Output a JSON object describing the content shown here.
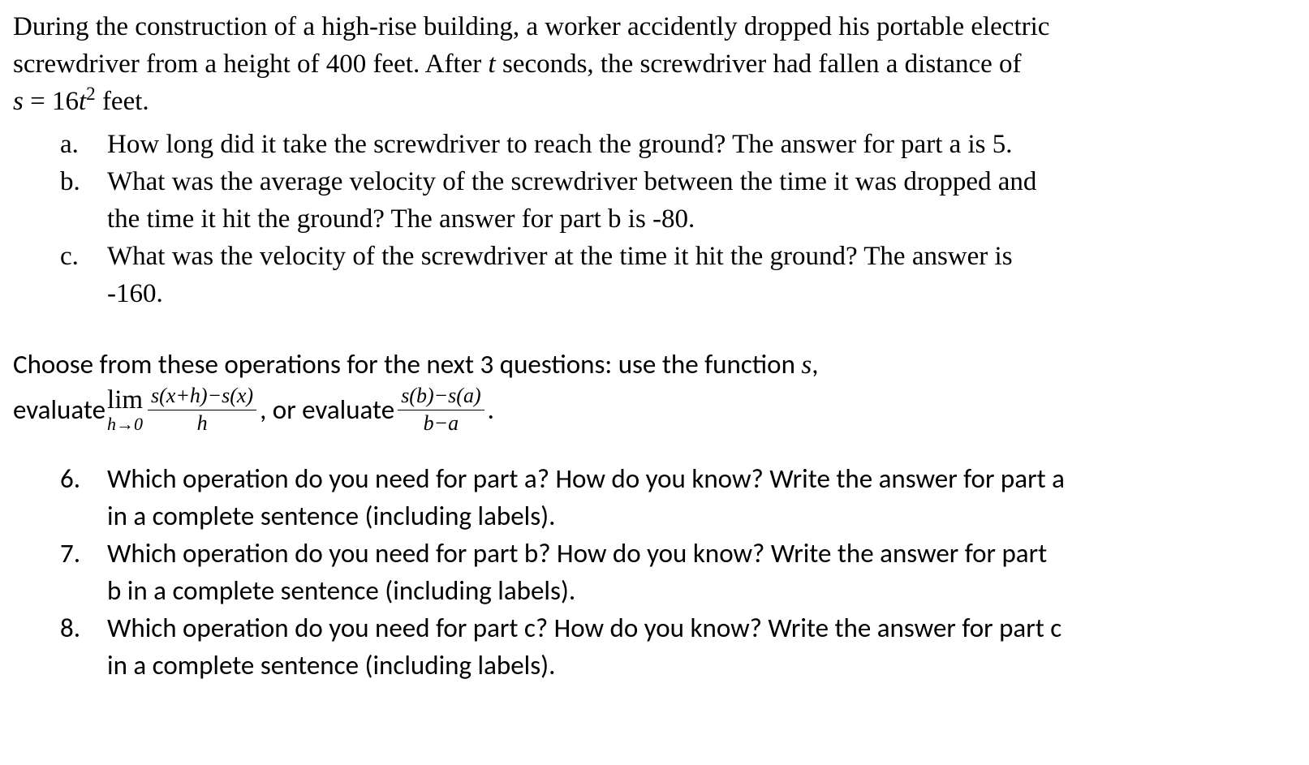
{
  "intro": {
    "line1_a": "During the construction of a high-rise building, a worker accidently dropped his portable electric",
    "line2_a": "screwdriver from a height of 400 feet. After ",
    "t": "t",
    "line2_b": " seconds, the screwdriver had fallen a distance of",
    "line3_a": "s",
    "line3_eq": " = 16",
    "line3_t": "t",
    "line3_sup": "2",
    "line3_b": " feet."
  },
  "parts": {
    "a": {
      "marker": "a.",
      "text": "How long did it take the screwdriver to reach the ground? The answer for part a is 5."
    },
    "b": {
      "marker": "b.",
      "text1": "What was the average velocity of the screwdriver between the time it was dropped and",
      "text2": "the time it hit the ground? The answer for part b is -80."
    },
    "c": {
      "marker": "c.",
      "text1": "What was the velocity of the screwdriver at the time it hit the ground? The answer is",
      "text2": "-160."
    }
  },
  "instruction": {
    "line1": "Choose from these operations for the next 3 questions: use the function ",
    "s": "s",
    "comma": ",",
    "evaluate1": "evaluate ",
    "lim_top": "lim",
    "lim_bot": "h→0",
    "frac1_num": "s(x+h)−s(x)",
    "frac1_den": "h",
    "mid": ", or evaluate ",
    "frac2_num": "s(b)−s(a)",
    "frac2_den": "b−a",
    "period": "."
  },
  "questions": {
    "q6": {
      "marker": "6.",
      "text1": "Which operation do you need for part a? How do you know? Write the answer for part a",
      "text2": "in a complete sentence (including labels)."
    },
    "q7": {
      "marker": "7.",
      "text1": "Which operation do you need for part b? How do you know? Write the answer for part",
      "text2": "b in a complete sentence (including labels)."
    },
    "q8": {
      "marker": "8.",
      "text1": "Which operation do you need for part c? How do you know? Write the answer for part c",
      "text2": "in a complete sentence (including labels)."
    }
  }
}
